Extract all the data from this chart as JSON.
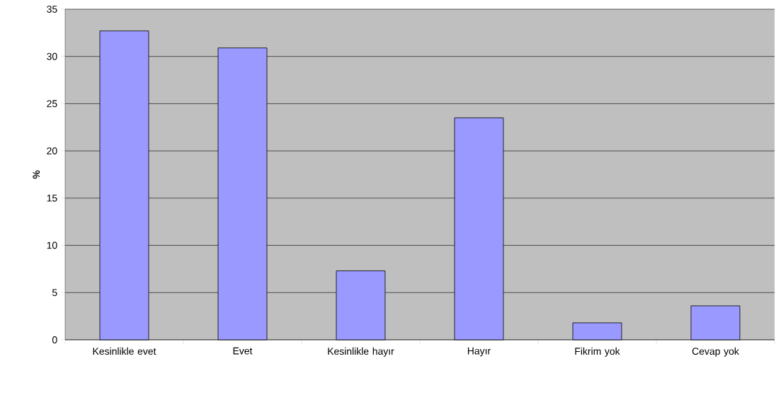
{
  "chart_data": {
    "type": "bar",
    "ylabel": "%",
    "categories": [
      "Kesinlikle evet",
      "Evet",
      "Kesinlikle hayır",
      "Hayır",
      "Fikrim yok",
      "Cevap yok"
    ],
    "values": [
      32.7,
      30.9,
      7.3,
      23.5,
      1.8,
      3.6
    ],
    "color": "#9999ff",
    "ylim": [
      0,
      35
    ],
    "yticks": [
      0,
      5,
      10,
      15,
      20,
      25,
      30,
      35
    ],
    "grid": "y"
  }
}
